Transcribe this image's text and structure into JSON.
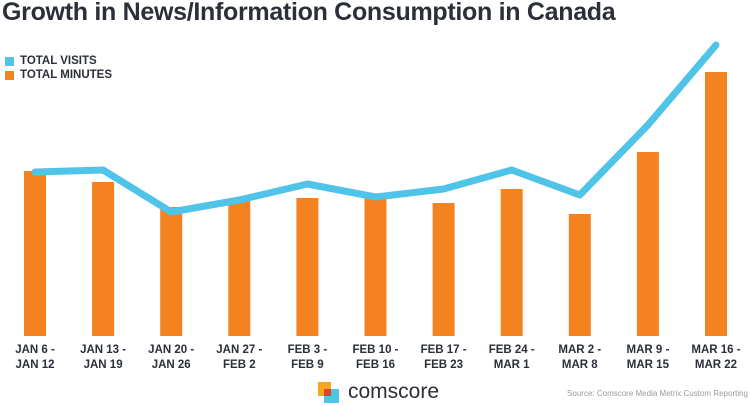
{
  "chart_data": {
    "type": "bar+line",
    "title": "Growth in News/Information Consumption in Canada",
    "categories": [
      [
        "JAN 6 -",
        "JAN 12"
      ],
      [
        "JAN 13 -",
        "JAN 19"
      ],
      [
        "JAN 20 -",
        "JAN 26"
      ],
      [
        "JAN 27 -",
        "FEB 2"
      ],
      [
        "FEB 3 -",
        "FEB 9"
      ],
      [
        "FEB 10 -",
        "FEB 16"
      ],
      [
        "FEB 17 -",
        "FEB 23"
      ],
      [
        "FEB 24 -",
        "MAR 1"
      ],
      [
        "MAR 2 -",
        "MAR 8"
      ],
      [
        "MAR 9 -",
        "MAR 15"
      ],
      [
        "MAR 16 -",
        "MAR 22"
      ]
    ],
    "series": [
      {
        "name": "TOTAL VISITS",
        "type": "line",
        "color": "#4fc3e8",
        "values": [
          164,
          166,
          124,
          136,
          152,
          139,
          147,
          166,
          141,
          211,
          291
        ]
      },
      {
        "name": "TOTAL MINUTES",
        "type": "bar",
        "color": "#f58220",
        "values": [
          165,
          154,
          129,
          138,
          138,
          138,
          133,
          147,
          122,
          184,
          264
        ]
      }
    ],
    "ylim": [
      0,
      300
    ],
    "y_axis_shown": false,
    "grid": false,
    "legend_position": "top-left"
  },
  "logo": {
    "text": "comscore"
  },
  "source": "Source: Comscore Media Metrix Custom Reporting"
}
